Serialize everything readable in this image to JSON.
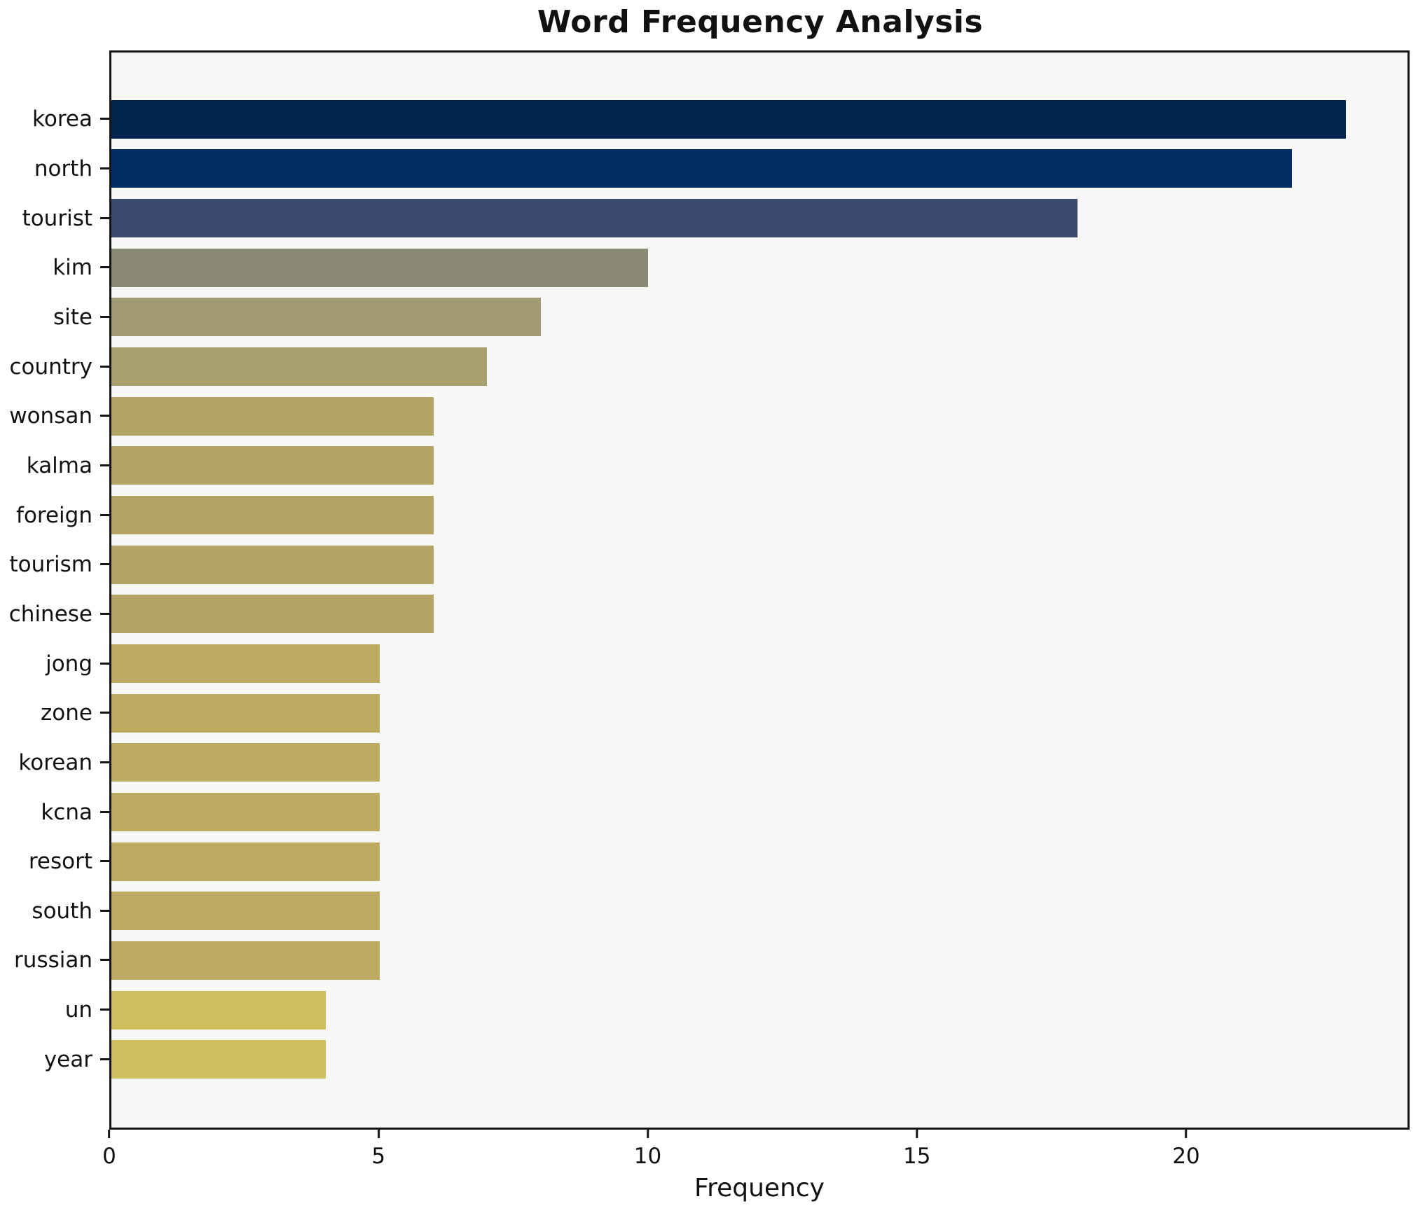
{
  "chart_data": {
    "type": "bar",
    "orientation": "horizontal",
    "title": "Word Frequency Analysis",
    "xlabel": "Frequency",
    "ylabel": "",
    "categories": [
      "korea",
      "north",
      "tourist",
      "kim",
      "site",
      "country",
      "wonsan",
      "kalma",
      "foreign",
      "tourism",
      "chinese",
      "jong",
      "zone",
      "korean",
      "kcna",
      "resort",
      "south",
      "russian",
      "un",
      "year"
    ],
    "values": [
      23,
      22,
      18,
      10,
      8,
      7,
      6,
      6,
      6,
      6,
      6,
      5,
      5,
      5,
      5,
      5,
      5,
      5,
      4,
      4
    ],
    "bar_colors": [
      "#03234f",
      "#042d64",
      "#3c4a6e",
      "#8b8a76",
      "#a29a72",
      "#a9a070",
      "#b2a566",
      "#b2a566",
      "#b2a566",
      "#b2a566",
      "#b2a566",
      "#bcab60",
      "#bcab60",
      "#bcab60",
      "#bcab60",
      "#bcab60",
      "#bcab60",
      "#bcab60",
      "#cfbd5e",
      "#cfbd5e"
    ],
    "xlim": [
      0,
      24.15
    ],
    "xticks": [
      0,
      5,
      10,
      15,
      20
    ],
    "grid": false,
    "legend": null,
    "plot_background": "#f7f7f5",
    "figure_background": "#ffffff",
    "text_color": "#111111"
  }
}
